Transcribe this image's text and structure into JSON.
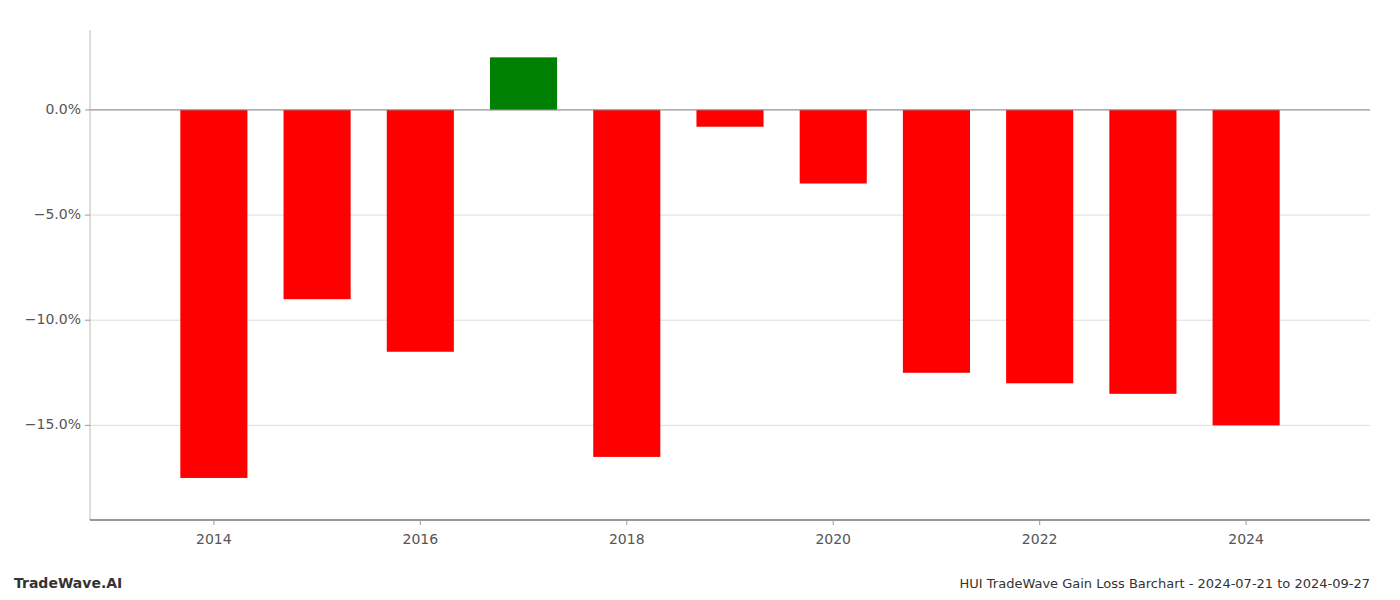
{
  "chart_data": {
    "type": "bar",
    "title": "HUI TradeWave Gain Loss Barchart - 2024-07-21 to 2024-09-27",
    "annotations": [
      "TradeWave.AI"
    ],
    "x": [
      2014,
      2015,
      2016,
      2017,
      2018,
      2019,
      2020,
      2021,
      2022,
      2023,
      2024
    ],
    "values": [
      -17.5,
      -9.0,
      -11.5,
      2.5,
      -16.5,
      -0.8,
      -3.5,
      -12.5,
      -13.0,
      -13.5,
      -15.0
    ],
    "colors": [
      "#ff0000",
      "#ff0000",
      "#ff0000",
      "#008000",
      "#ff0000",
      "#ff0000",
      "#ff0000",
      "#ff0000",
      "#ff0000",
      "#ff0000",
      "#ff0000"
    ],
    "xlim": [
      2012.8,
      2025.2
    ],
    "xticks": [
      2014,
      2016,
      2018,
      2020,
      2022,
      2024
    ],
    "ylim": [
      -19.5,
      3.8
    ],
    "yticks": [
      {
        "value": 0.0,
        "label": "0.0%"
      },
      {
        "value": -5.0,
        "label": "−5.0%"
      },
      {
        "value": -10.0,
        "label": "−10.0%"
      },
      {
        "value": -15.0,
        "label": "−15.0%"
      }
    ],
    "grid": true
  }
}
